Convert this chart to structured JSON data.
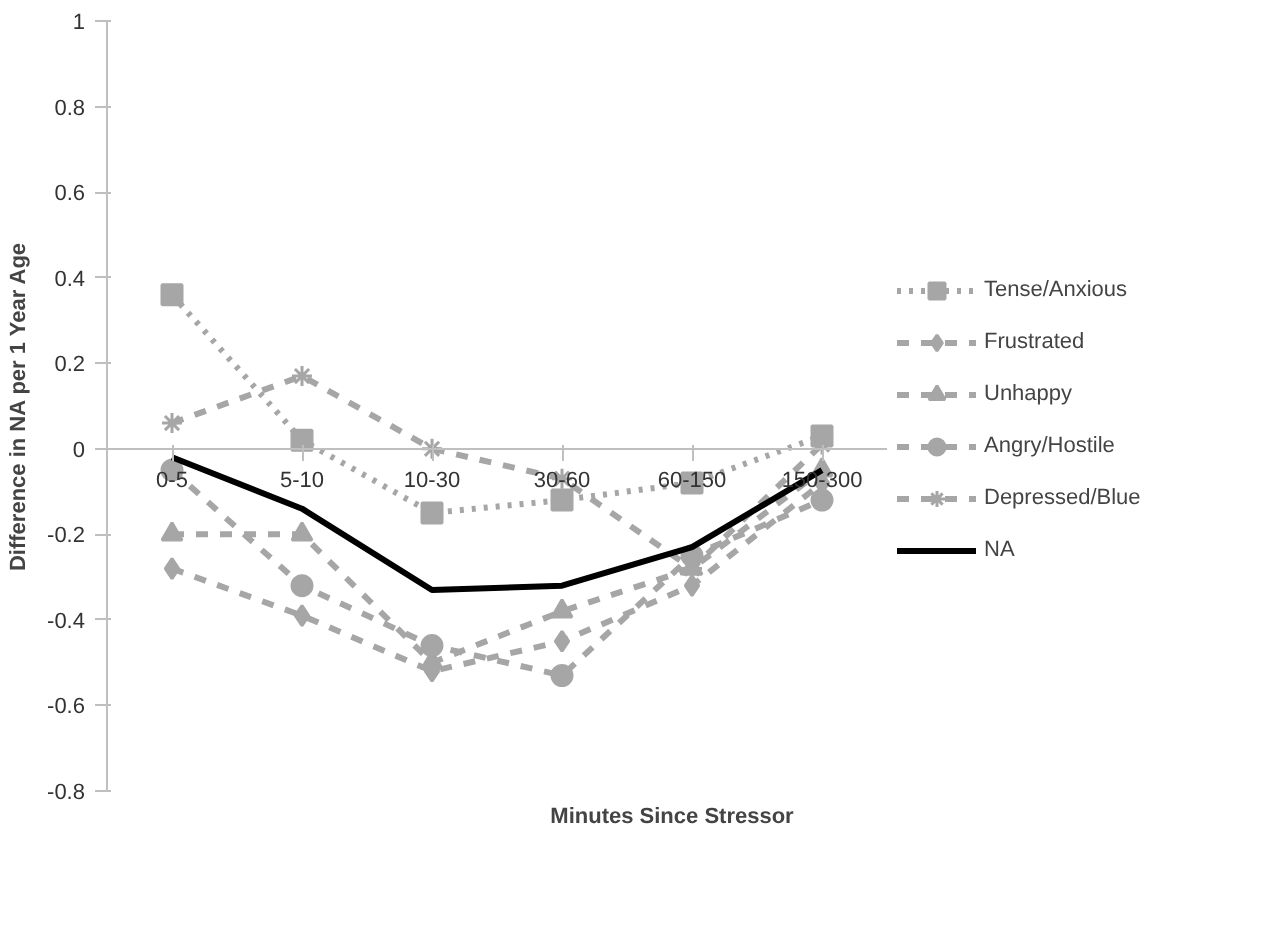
{
  "chart_data": {
    "type": "line",
    "xlabel": "Minutes Since Stressor",
    "ylabel": "Difference in NA per 1 Year Age",
    "categories": [
      "0-5",
      "5-10",
      "10-30",
      "30-60",
      "60-150",
      "150-300"
    ],
    "ylim": [
      -0.8,
      1
    ],
    "yticks": [
      {
        "value": -0.8,
        "label": "-0.8"
      },
      {
        "value": -0.6,
        "label": "-0.6"
      },
      {
        "value": -0.4,
        "label": "-0.4"
      },
      {
        "value": -0.2,
        "label": "-0.2"
      },
      0,
      {
        "value": 0.2,
        "label": "0.2"
      },
      {
        "value": 0.4,
        "label": "0.4"
      },
      {
        "value": 0.6,
        "label": "0.6"
      },
      {
        "value": 0.8,
        "label": "0.8"
      },
      1
    ],
    "grid": false,
    "legend": "right",
    "series": [
      {
        "name": "Tense/Anxious",
        "color": "#a6a6a6",
        "line_style": "dotted",
        "marker": "square",
        "values": [
          0.36,
          0.02,
          -0.15,
          -0.12,
          -0.08,
          0.03
        ]
      },
      {
        "name": "Frustrated",
        "color": "#a6a6a6",
        "line_style": "dashed",
        "marker": "diamond",
        "values": [
          -0.28,
          -0.39,
          -0.52,
          -0.45,
          -0.32,
          -0.08
        ]
      },
      {
        "name": "Unhappy",
        "color": "#a6a6a6",
        "line_style": "dashed",
        "marker": "triangle",
        "values": [
          -0.2,
          -0.2,
          -0.5,
          -0.38,
          -0.28,
          -0.05
        ]
      },
      {
        "name": "Angry/Hostile",
        "color": "#a6a6a6",
        "line_style": "dashed",
        "marker": "circle",
        "values": [
          -0.05,
          -0.32,
          -0.46,
          -0.53,
          -0.25,
          -0.12
        ]
      },
      {
        "name": "Depressed/Blue",
        "color": "#a6a6a6",
        "line_style": "dashed",
        "marker": "cross",
        "values": [
          0.06,
          0.17,
          0.0,
          -0.07,
          -0.28,
          0.01
        ]
      },
      {
        "name": "NA",
        "color": "#000000",
        "line_style": "solid",
        "marker": "none",
        "values": [
          -0.02,
          -0.14,
          -0.33,
          -0.32,
          -0.23,
          -0.05
        ]
      }
    ]
  }
}
